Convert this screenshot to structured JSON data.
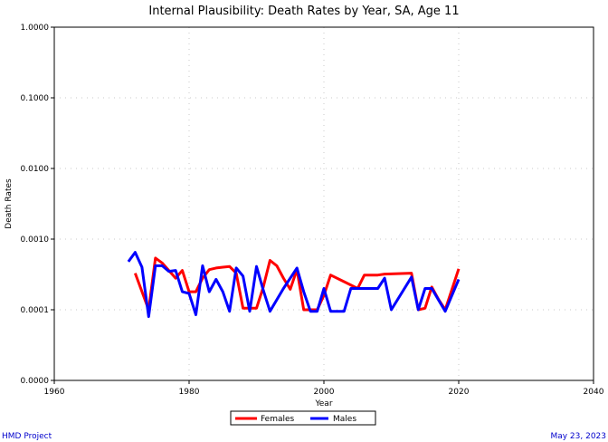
{
  "chart_data": {
    "type": "line",
    "title": "Internal Plausibility: Death Rates by Year, SA, Age 11",
    "xlabel": "Year",
    "ylabel": "Death Rates",
    "xlim": [
      1960,
      2040
    ],
    "ylim": [
      1e-05,
      1.0
    ],
    "y_scale": "log",
    "x_ticks": [
      1960,
      1980,
      2000,
      2020,
      2040
    ],
    "x_tick_labels": [
      "1960",
      "1980",
      "2000",
      "2020",
      "2040"
    ],
    "y_ticks": [
      1e-05,
      0.0001,
      0.001,
      0.01,
      0.1,
      1.0
    ],
    "y_tick_labels": [
      "0.0000",
      "0.0001",
      "0.0010",
      "0.0100",
      "0.1000",
      "1.0000"
    ],
    "grid": true,
    "legend_position": "bottom-center",
    "series": [
      {
        "name": "Females",
        "color": "#ff0000",
        "points": [
          [
            1972,
            0.00033
          ],
          [
            1974,
            0.0001
          ],
          [
            1975,
            0.00054
          ],
          [
            1976,
            0.00046
          ],
          [
            1978,
            0.00028
          ],
          [
            1979,
            0.00036
          ],
          [
            1980,
            0.00018
          ],
          [
            1981,
            0.00018
          ],
          [
            1982,
            0.00028
          ],
          [
            1983,
            0.00037
          ],
          [
            1984,
            0.00039
          ],
          [
            1985,
            0.0004
          ],
          [
            1986,
            0.00041
          ],
          [
            1987,
            0.00033
          ],
          [
            1988,
            0.000105
          ],
          [
            1989,
            0.000105
          ],
          [
            1990,
            0.000105
          ],
          [
            1991,
            0.00021
          ],
          [
            1992,
            0.0005
          ],
          [
            1993,
            0.00042
          ],
          [
            1994,
            0.00028
          ],
          [
            1995,
            0.000195
          ],
          [
            1996,
            0.00037
          ],
          [
            1997,
            0.0001
          ],
          [
            1998,
            0.0001
          ],
          [
            1999,
            0.0001
          ],
          [
            2000,
            0.00016
          ],
          [
            2001,
            0.00031
          ],
          [
            2003,
            0.00025
          ],
          [
            2005,
            0.0002
          ],
          [
            2006,
            0.00031
          ],
          [
            2008,
            0.00031
          ],
          [
            2009,
            0.00032
          ],
          [
            2013,
            0.00033
          ],
          [
            2014,
            0.0001
          ],
          [
            2015,
            0.000105
          ],
          [
            2016,
            0.00021
          ],
          [
            2017,
            0.00014
          ],
          [
            2018,
            0.0001
          ],
          [
            2020,
            0.00038
          ]
        ]
      },
      {
        "name": "Males",
        "color": "#0000ff",
        "points": [
          [
            1971,
            0.00048
          ],
          [
            1972,
            0.00065
          ],
          [
            1973,
            0.0004
          ],
          [
            1974,
            8e-05
          ],
          [
            1975,
            0.00042
          ],
          [
            1976,
            0.00042
          ],
          [
            1977,
            0.00035
          ],
          [
            1978,
            0.00036
          ],
          [
            1979,
            0.00018
          ],
          [
            1980,
            0.00017
          ],
          [
            1981,
            8.5e-05
          ],
          [
            1982,
            0.00042
          ],
          [
            1983,
            0.00018
          ],
          [
            1984,
            0.00027
          ],
          [
            1985,
            0.00018
          ],
          [
            1986,
            9.5e-05
          ],
          [
            1987,
            0.00039
          ],
          [
            1988,
            0.0003
          ],
          [
            1989,
            9.5e-05
          ],
          [
            1990,
            0.00041
          ],
          [
            1991,
            0.00019
          ],
          [
            1992,
            9.5e-05
          ],
          [
            1994,
            0.0002
          ],
          [
            1996,
            0.00039
          ],
          [
            1997,
            0.00018
          ],
          [
            1998,
            9.5e-05
          ],
          [
            1999,
            9.5e-05
          ],
          [
            2000,
            0.0002
          ],
          [
            2001,
            9.5e-05
          ],
          [
            2003,
            9.5e-05
          ],
          [
            2004,
            0.0002
          ],
          [
            2005,
            0.0002
          ],
          [
            2006,
            0.0002
          ],
          [
            2008,
            0.0002
          ],
          [
            2009,
            0.00028
          ],
          [
            2010,
            0.0001
          ],
          [
            2013,
            0.00029
          ],
          [
            2014,
            0.0001
          ],
          [
            2015,
            0.0002
          ],
          [
            2016,
            0.0002
          ],
          [
            2018,
            9.5e-05
          ],
          [
            2020,
            0.00027
          ]
        ]
      }
    ]
  },
  "footer": {
    "left": "HMD Project",
    "right": "May 23, 2023"
  }
}
